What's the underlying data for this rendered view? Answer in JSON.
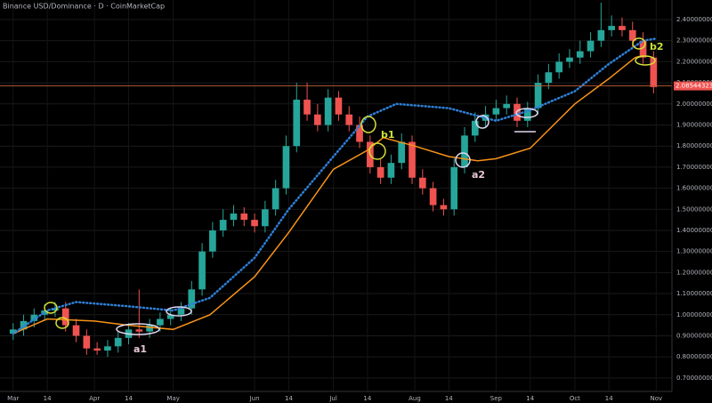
{
  "chart_data": {
    "type": "candlestick",
    "title": "Binance USD/Dominance · D · CoinMarketCap",
    "x": [
      0,
      4,
      8,
      12,
      16,
      20,
      24,
      28,
      32,
      36,
      40,
      44,
      48,
      52,
      56,
      60,
      64,
      68,
      72,
      76,
      80,
      84,
      88,
      92,
      96,
      100,
      104,
      108,
      112,
      116,
      120,
      124,
      128,
      132,
      136,
      140,
      144,
      148,
      152,
      156,
      160,
      164,
      168,
      172,
      176,
      180,
      184,
      188,
      192,
      196,
      200,
      204,
      208,
      212,
      216,
      220,
      224,
      228,
      232,
      236,
      240,
      244
    ],
    "open": [
      0.91,
      0.93,
      0.97,
      1.0,
      1.02,
      1.03,
      0.95,
      0.9,
      0.84,
      0.83,
      0.85,
      0.89,
      0.93,
      0.92,
      0.95,
      0.98,
      1.0,
      1.03,
      1.12,
      1.3,
      1.4,
      1.45,
      1.48,
      1.45,
      1.42,
      1.5,
      1.6,
      1.8,
      2.02,
      1.95,
      1.9,
      2.03,
      1.95,
      1.9,
      1.82,
      1.7,
      1.65,
      1.72,
      1.82,
      1.65,
      1.6,
      1.52,
      1.5,
      1.7,
      1.85,
      1.92,
      1.95,
      1.98,
      2.0,
      1.92,
      1.98,
      2.1,
      2.15,
      2.2,
      2.22,
      2.25,
      2.3,
      2.35,
      2.37,
      2.35,
      2.3,
      2.22
    ],
    "high": [
      0.96,
      1.0,
      1.03,
      1.05,
      1.06,
      1.06,
      0.98,
      0.93,
      0.87,
      0.88,
      0.92,
      0.96,
      1.12,
      0.98,
      1.01,
      1.03,
      1.06,
      1.16,
      1.34,
      1.44,
      1.5,
      1.52,
      1.51,
      1.48,
      1.54,
      1.64,
      1.85,
      2.1,
      2.1,
      2.0,
      2.07,
      2.06,
      1.99,
      1.94,
      1.85,
      1.74,
      1.76,
      1.86,
      1.85,
      1.69,
      1.63,
      1.55,
      1.74,
      1.89,
      1.96,
      1.99,
      2.02,
      2.04,
      2.03,
      2.01,
      2.14,
      2.19,
      2.24,
      2.26,
      2.3,
      2.34,
      2.48,
      2.42,
      2.41,
      2.39,
      2.34,
      2.25
    ],
    "low": [
      0.88,
      0.9,
      0.94,
      0.97,
      0.99,
      0.92,
      0.87,
      0.81,
      0.81,
      0.8,
      0.82,
      0.86,
      0.89,
      0.89,
      0.92,
      0.95,
      0.97,
      1.0,
      1.09,
      1.27,
      1.37,
      1.42,
      1.42,
      1.39,
      1.39,
      1.47,
      1.57,
      1.77,
      1.92,
      1.87,
      1.87,
      1.92,
      1.87,
      1.79,
      1.67,
      1.62,
      1.62,
      1.69,
      1.62,
      1.57,
      1.49,
      1.47,
      1.47,
      1.67,
      1.82,
      1.89,
      1.92,
      1.95,
      1.89,
      1.89,
      1.95,
      2.07,
      2.12,
      2.17,
      2.19,
      2.22,
      2.27,
      2.32,
      2.32,
      2.27,
      2.19,
      2.05
    ],
    "close": [
      0.93,
      0.97,
      1.0,
      1.02,
      1.03,
      0.95,
      0.9,
      0.84,
      0.83,
      0.85,
      0.89,
      0.93,
      0.92,
      0.95,
      0.98,
      1.0,
      1.03,
      1.12,
      1.3,
      1.4,
      1.45,
      1.48,
      1.45,
      1.42,
      1.5,
      1.6,
      1.8,
      2.02,
      1.95,
      1.9,
      2.03,
      1.95,
      1.9,
      1.82,
      1.7,
      1.65,
      1.72,
      1.82,
      1.65,
      1.6,
      1.52,
      1.5,
      1.7,
      1.85,
      1.92,
      1.95,
      1.98,
      2.0,
      1.92,
      1.98,
      2.1,
      2.15,
      2.2,
      2.22,
      2.25,
      2.3,
      2.35,
      2.37,
      2.35,
      2.3,
      2.22,
      2.08
    ],
    "up_color": "#26a69a",
    "down_color": "#ef5350",
    "lines": [
      {
        "color": "#f7931a",
        "style": "solid",
        "x": [
          0,
          13,
          31,
          44,
          61,
          75,
          92,
          105,
          122,
          135,
          141,
          153,
          166,
          177,
          184,
          197,
          214,
          227,
          237,
          240
        ],
        "values": [
          0.91,
          0.98,
          0.97,
          0.95,
          0.93,
          1.0,
          1.18,
          1.39,
          1.69,
          1.78,
          1.84,
          1.8,
          1.75,
          1.73,
          1.74,
          1.79,
          2.0,
          2.12,
          2.22,
          2.23
        ]
      },
      {
        "color": "#2f7fd6",
        "style": "dotted",
        "x": [
          0,
          13,
          24,
          44,
          61,
          75,
          92,
          105,
          122,
          135,
          146,
          166,
          184,
          197,
          214,
          227,
          240,
          245
        ],
        "values": [
          0.91,
          1.02,
          1.06,
          1.04,
          1.02,
          1.08,
          1.27,
          1.5,
          1.75,
          1.94,
          2.0,
          1.98,
          1.92,
          1.97,
          2.06,
          2.19,
          2.3,
          2.31
        ]
      }
    ],
    "last_price": {
      "value": 2.08544323,
      "label": "2.0854432300"
    },
    "xlim": [
      -5,
      251
    ],
    "ylim": [
      0.636,
      2.493
    ],
    "xticks": [
      {
        "value": 0,
        "label": "Mar"
      },
      {
        "value": 13,
        "label": "14"
      },
      {
        "value": 31,
        "label": "Apr"
      },
      {
        "value": 44,
        "label": "14"
      },
      {
        "value": 61,
        "label": "May"
      },
      {
        "value": 92,
        "label": "Jun"
      },
      {
        "value": 105,
        "label": "14"
      },
      {
        "value": 122,
        "label": "Jul"
      },
      {
        "value": 135,
        "label": "14"
      },
      {
        "value": 153,
        "label": "Aug"
      },
      {
        "value": 166,
        "label": "14"
      },
      {
        "value": 184,
        "label": "Sep"
      },
      {
        "value": 197,
        "label": "14"
      },
      {
        "value": 214,
        "label": "Oct"
      },
      {
        "value": 227,
        "label": "14"
      },
      {
        "value": 245,
        "label": "Nov"
      }
    ],
    "yticks": [
      {
        "value": 0.7,
        "label": "0.7000000000"
      },
      {
        "value": 0.8,
        "label": "0.8000000000"
      },
      {
        "value": 0.9,
        "label": "0.9000000000"
      },
      {
        "value": 1.0,
        "label": "1.0000000000"
      },
      {
        "value": 1.1,
        "label": "1.1000000000"
      },
      {
        "value": 1.2,
        "label": "1.2000000000"
      },
      {
        "value": 1.3,
        "label": "1.3000000000"
      },
      {
        "value": 1.4,
        "label": "1.4000000000"
      },
      {
        "value": 1.5,
        "label": "1.5000000000"
      },
      {
        "value": 1.6,
        "label": "1.6000000000"
      },
      {
        "value": 1.7,
        "label": "1.7000000000"
      },
      {
        "value": 1.8,
        "label": "1.8000000000"
      },
      {
        "value": 1.9,
        "label": "1.9000000000"
      },
      {
        "value": 2.0,
        "label": "2.0000000000"
      },
      {
        "value": 2.1,
        "label": "2.1000000000"
      },
      {
        "value": 2.2,
        "label": "2.2000000000"
      },
      {
        "value": 2.3,
        "label": "2.3000000000"
      },
      {
        "value": 2.4,
        "label": "2.4000000000"
      }
    ],
    "annotations": [
      "a1",
      "a2",
      "b1",
      "b2"
    ]
  }
}
